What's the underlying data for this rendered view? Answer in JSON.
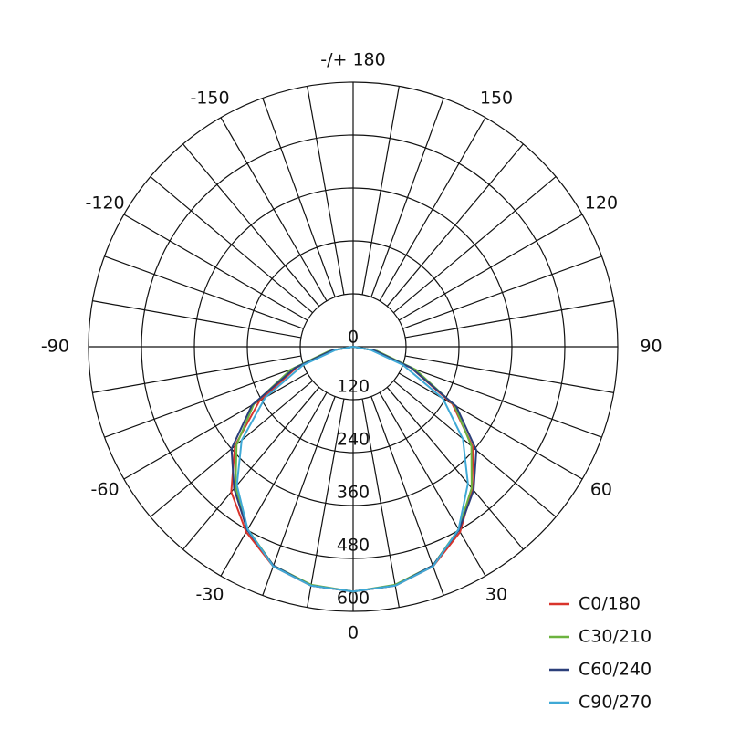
{
  "chart_data": {
    "type": "polar",
    "theta": [
      -90,
      -80,
      -70,
      -60,
      -50,
      -40,
      -30,
      -20,
      -10,
      0,
      10,
      20,
      30,
      40,
      50,
      60,
      70,
      80,
      90
    ],
    "rlim": [
      0,
      600
    ],
    "rticks": [
      0,
      120,
      240,
      360,
      480,
      600
    ],
    "thetaticks": [
      0,
      30,
      60,
      90,
      120,
      150,
      {
        "value": 180,
        "label": "-/+ 180"
      },
      -150,
      -120,
      -90,
      -60,
      -30
    ],
    "theta_grid_step": 10,
    "legend": "bottom-right",
    "series": [
      {
        "name": "C0/180",
        "color": "#d9342b",
        "values": [
          0,
          45,
          135,
          245,
          350,
          430,
          485,
          530,
          550,
          555,
          550,
          530,
          485,
          420,
          355,
          260,
          140,
          45,
          0
        ]
      },
      {
        "name": "C30/210",
        "color": "#6cb33f",
        "values": [
          0,
          55,
          150,
          260,
          345,
          415,
          478,
          528,
          548,
          555,
          548,
          528,
          478,
          418,
          350,
          265,
          150,
          55,
          0
        ]
      },
      {
        "name": "C60/240",
        "color": "#2b3f7a",
        "values": [
          0,
          50,
          140,
          265,
          360,
          420,
          480,
          528,
          550,
          555,
          550,
          528,
          480,
          425,
          365,
          270,
          140,
          50,
          0
        ]
      },
      {
        "name": "C90/270",
        "color": "#3fa9d6",
        "values": [
          0,
          40,
          120,
          230,
          330,
          410,
          478,
          530,
          550,
          555,
          550,
          530,
          478,
          405,
          325,
          235,
          120,
          40,
          0
        ]
      }
    ]
  }
}
